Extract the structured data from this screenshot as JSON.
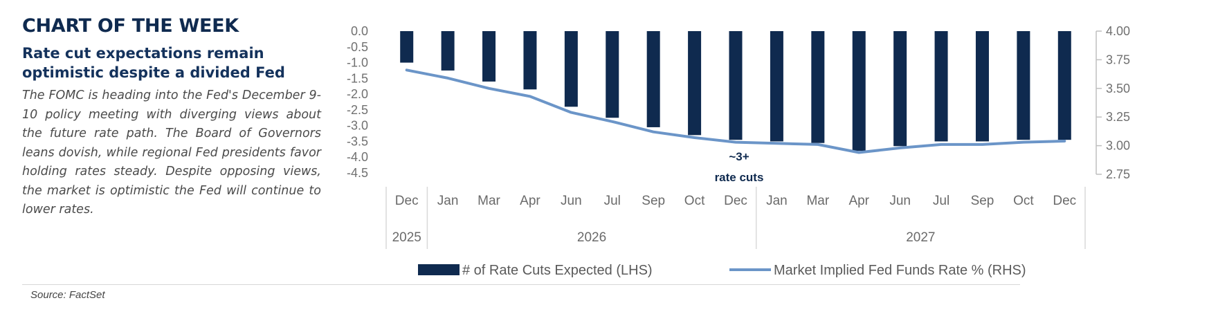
{
  "header": {
    "kicker": "CHART OF THE WEEK",
    "subtitle": "Rate cut expectations remain optimistic despite a divided Fed",
    "body": "The FOMC is heading into the Fed's December 9-10 policy meeting with diverging views about the future rate path. The Board of Governors leans dovish, while regional Fed presidents favor holding rates steady. Despite opposing views, the market is optimistic the Fed will continue to lower rates."
  },
  "source": "Source: FactSet",
  "colors": {
    "bar": "#0f2a4f",
    "line": "#6b95c8",
    "kicker": "#0f2a4f",
    "axis": "#bfbfbf"
  },
  "chart_data": {
    "type": "bar+line",
    "categories": [
      "Dec",
      "Jan",
      "Mar",
      "Apr",
      "Jun",
      "Jul",
      "Sep",
      "Oct",
      "Dec",
      "Jan",
      "Mar",
      "Apr",
      "Jun",
      "Jul",
      "Sep",
      "Oct",
      "Dec"
    ],
    "year_groups": [
      {
        "label": "2025",
        "count": 1
      },
      {
        "label": "2026",
        "count": 8
      },
      {
        "label": "2027",
        "count": 8
      }
    ],
    "series": [
      {
        "name": "# of Rate Cuts Expected (LHS)",
        "type": "bar",
        "axis": "left",
        "values": [
          -1.0,
          -1.25,
          -1.6,
          -1.85,
          -2.4,
          -2.75,
          -3.05,
          -3.3,
          -3.45,
          -3.5,
          -3.55,
          -3.8,
          -3.65,
          -3.5,
          -3.5,
          -3.45,
          -3.45
        ]
      },
      {
        "name": "Market Implied Fed Funds Rate % (RHS)",
        "type": "line",
        "axis": "right",
        "values": [
          3.66,
          3.59,
          3.5,
          3.43,
          3.29,
          3.21,
          3.12,
          3.07,
          3.03,
          3.02,
          3.01,
          2.94,
          2.98,
          3.01,
          3.01,
          3.03,
          3.04
        ]
      }
    ],
    "y_left": {
      "range": [
        -4.5,
        0.0
      ],
      "ticks": [
        "0.0",
        "-0.5",
        "-1.0",
        "-1.5",
        "-2.0",
        "-2.5",
        "-3.0",
        "-3.5",
        "-4.0",
        "-4.5"
      ]
    },
    "y_right": {
      "range": [
        2.75,
        4.0
      ],
      "ticks": [
        "4.00",
        "3.75",
        "3.50",
        "3.25",
        "3.00",
        "2.75"
      ]
    },
    "annotation": {
      "lines": [
        "~3+",
        "rate cuts"
      ]
    },
    "legend_position": "bottom",
    "grid": false
  }
}
